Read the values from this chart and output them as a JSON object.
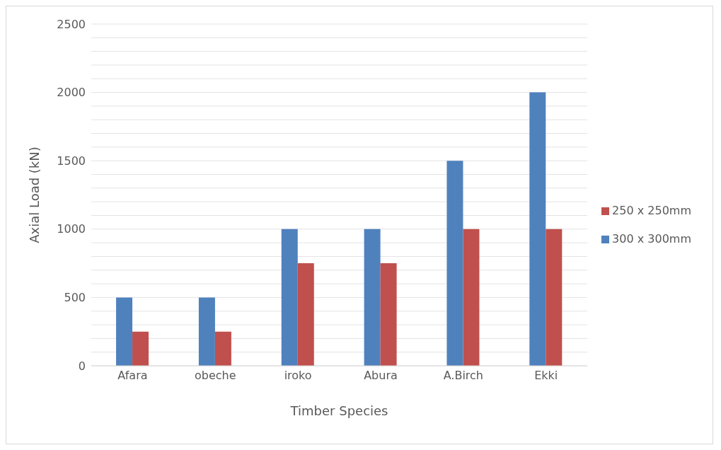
{
  "chart_data": {
    "type": "bar",
    "xlabel": "Timber Species",
    "ylabel": "Axial Load (kN)",
    "categories": [
      "Afara",
      "obeche",
      "iroko",
      "Abura",
      "A.Birch",
      "Ekki"
    ],
    "series": [
      {
        "name": "300 x 300mm",
        "color": "#4f81bd",
        "values": [
          500,
          500,
          1000,
          1000,
          1500,
          2000
        ]
      },
      {
        "name": "250 x 250mm",
        "color": "#c0504d",
        "values": [
          250,
          250,
          750,
          750,
          1000,
          1000
        ]
      }
    ],
    "ylim": [
      0,
      2500
    ],
    "yticks": [
      0,
      {
        "value": 100,
        "label": null
      },
      {
        "value": 200,
        "label": null
      },
      {
        "value": 300,
        "label": null
      },
      {
        "value": 400,
        "label": null
      },
      500,
      {
        "value": 600,
        "label": null
      },
      {
        "value": 700,
        "label": null
      },
      {
        "value": 800,
        "label": null
      },
      {
        "value": 900,
        "label": null
      },
      1000,
      {
        "value": 1100,
        "label": null
      },
      {
        "value": 1200,
        "label": null
      },
      {
        "value": 1300,
        "label": null
      },
      {
        "value": 1400,
        "label": null
      },
      1500,
      {
        "value": 1600,
        "label": null
      },
      {
        "value": 1700,
        "label": null
      },
      {
        "value": 1800,
        "label": null
      },
      {
        "value": 1900,
        "label": null
      },
      2000,
      {
        "value": 2100,
        "label": null
      },
      {
        "value": 2200,
        "label": null
      },
      {
        "value": 2300,
        "label": null
      },
      {
        "value": 2400,
        "label": null
      },
      2500
    ],
    "grid": "y",
    "legend": "right"
  }
}
